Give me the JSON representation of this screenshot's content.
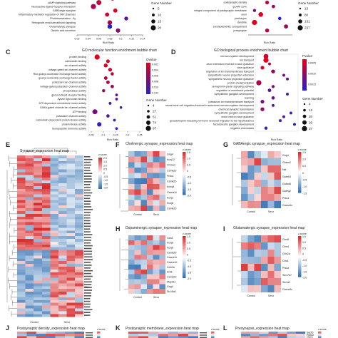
{
  "panel_a": {
    "terms": [
      "Insulin secretion",
      "cAMP signaling pathway",
      "Neuroactive ligand-receptor interaction",
      "GABAergic synapse",
      "Inflammatory mediator regulation of TRP channels",
      "Phototransduction - fly",
      "Retrograde endocannabinoid signaling",
      "Glutamatergic synapse",
      "Gastric acid secretion"
    ],
    "rich_ratio": [
      0.085,
      0.06,
      0.05,
      0.09,
      0.075,
      0.11,
      0.08,
      0.08,
      0.095
    ],
    "gene_number": [
      10,
      18,
      20,
      10,
      10,
      8,
      14,
      14,
      12
    ],
    "pvalue": [
      0.001,
      0.0015,
      0.002,
      0.0005,
      0.001,
      0.004,
      0.002,
      0.005,
      0.003
    ],
    "x_ticks": [
      "0.02",
      "0.04",
      "0.06",
      "0.08",
      "0.1",
      "0.12",
      "0.14"
    ],
    "xlabel": "Rich Ratio",
    "size_legend_title": "Gene Number",
    "size_legend": [
      "5",
      "10",
      "15",
      "20"
    ]
  },
  "panel_b": {
    "terms": [
      "postsynaptic density",
      "growth cone",
      "integral component of postsynaptic membrane",
      "axon",
      "perikaryon",
      "dendrite",
      "somatodendritic compartment",
      "presynapse"
    ],
    "rich_ratio": [
      0.12,
      0.13,
      0.1,
      0.11,
      0.14,
      0.1,
      0.15,
      0.12
    ],
    "gene_number": [
      40,
      30,
      20,
      90,
      25,
      120,
      60,
      50
    ],
    "pvalue": [
      0.0002,
      0.0003,
      0.0004,
      0.0001,
      0.0006,
      0.0001,
      0.0003,
      0.0002
    ],
    "xlabel": "Rich Ratio",
    "size_legend_title": "Gene Number",
    "size_legend": [
      "13",
      "80",
      "131",
      "237"
    ]
  },
  "panel_c": {
    "label": "C",
    "title": "GO molecular function enrichment bubble chart",
    "terms": [
      "protein binding",
      "calmodulin binding",
      "ion channel activity",
      "voltage-gated ion channel activity",
      "Rho guanyl-nucleotide exchange factor activity",
      "guanyl-nucleotide exchange factor activity",
      "potassium ion channel activity",
      "voltage-gated potassium channel activity",
      "phosphatase activity",
      "glucocorticoid receptor binding",
      "dynein light chain binding",
      "ATP-dependent microtubule motor activity",
      "GABA-gated chloride ion channel activity",
      "ATP binding",
      "potassium channel activity",
      "calmodulin-dependent protein kinase activity",
      "protein kinase activity",
      "neuropeptide hormone activity"
    ],
    "rich_ratio": [
      0.06,
      0.11,
      0.1,
      0.12,
      0.13,
      0.1,
      0.11,
      0.13,
      0.09,
      0.15,
      0.15,
      0.12,
      0.17,
      0.05,
      0.11,
      0.14,
      0.07,
      0.15
    ],
    "gene_number": [
      97,
      30,
      40,
      34,
      20,
      28,
      26,
      24,
      18,
      8,
      8,
      10,
      6,
      90,
      22,
      9,
      60,
      8
    ],
    "pvalue": [
      0.0005,
      0.001,
      0.0008,
      0.002,
      0.003,
      0.004,
      0.003,
      0.005,
      0.006,
      0.008,
      0.009,
      0.01,
      0.011,
      0.007,
      0.009,
      0.01,
      0.011,
      0.012
    ],
    "x_ticks": [
      "0.05",
      "0.1",
      "0.15",
      "0.2",
      "0.25"
    ],
    "xlabel": "Rich Ratio",
    "color_legend_title": "Qvalue",
    "color_legend": [
      "0.002",
      "0.004",
      "0.006",
      "0.008",
      "0.010",
      "0.012"
    ],
    "size_legend_title": "Gene Number",
    "size_legend": [
      "4",
      "27",
      "51",
      "74",
      "97"
    ]
  },
  "panel_d": {
    "label": "D",
    "title": "GO biological process enrichment bubble chart",
    "terms": [
      "nervous system development",
      "ion transport",
      "axon extension involved in axon guidance",
      "axon guidance",
      "regulation of ion transmembrane transport",
      "sympathetic neuron projection extension",
      "sympathetic neuron projection guidance",
      "protein phosphorylation",
      "semaphorin-plexin signaling pathway",
      "regulation of membrane potential",
      "sympathetic ganglion development",
      "learning",
      "potassium ion transmembrane transport",
      "neural crest cell migration involved in autonomic nervous system development",
      "chemical synaptic transmission",
      "sympathetic ganglion development",
      "motor neuron axon guidance",
      "gonadotrophin-releasing hormone neuronal migration to the hypothalamus",
      "facioacoustic ganglion development",
      "negative chemotaxis"
    ],
    "rich_ratio": [
      0.2,
      0.2,
      0.25,
      0.15,
      0.3,
      0.45,
      0.5,
      0.1,
      0.3,
      0.25,
      0.5,
      0.3,
      0.15,
      0.3,
      0.15,
      0.55,
      0.45,
      0.4,
      0.6,
      0.2
    ],
    "gene_number": [
      30,
      37,
      4,
      12,
      15,
      4,
      4,
      37,
      6,
      10,
      4,
      8,
      12,
      4,
      14,
      4,
      4,
      4,
      4,
      6
    ],
    "pvalue": [
      0.0002,
      0.0001,
      0.0003,
      0.0001,
      0.0005,
      0.0006,
      0.0007,
      0.0004,
      0.0006,
      0.0008,
      0.0009,
      0.0007,
      0.0006,
      0.0008,
      0.0005,
      0.0009,
      0.0008,
      0.0009,
      0.001,
      0.001
    ],
    "xlabel": "Rich Ratio",
    "color_legend_title": "Pvalue",
    "color_legend": [
      "0.0005",
      "0.0010",
      "0.0015"
    ],
    "size_legend_title": "Gene Number",
    "size_legend": [
      "4",
      "12",
      "20",
      "29",
      "37"
    ]
  },
  "panel_e": {
    "label": "E",
    "title": "Synapse_expression heat map",
    "groups": [
      "Control",
      "Sevo"
    ],
    "legend_title": "z-score",
    "legend_ticks": [
      "2.0",
      "1.5",
      "1.0",
      "0.5",
      "0",
      "-0.5",
      "-1.0",
      "-1.5",
      "-2.0"
    ],
    "row_label": "T63"
  },
  "panel_f": {
    "label": "F",
    "title": "Cholinergic synapse_expression heat map",
    "genes": [
      "Gng4",
      "Kcnj12",
      "Chrna4",
      "Camk2b",
      "Prkca",
      "Camk2b",
      "Kcnq5",
      "Cacna1c",
      "Kcnj2",
      "Kcnj8",
      "Camk2b"
    ],
    "groups": [
      "Control",
      "Sevo"
    ],
    "legend_title": "z-score",
    "legend_ticks": [
      "1.5",
      "1.0",
      "0.5",
      "0",
      "-0.5",
      "-1.0",
      "-1.5",
      "-2.0"
    ]
  },
  "panel_g": {
    "label": "G",
    "title": "GABAergic synapse_expression heat map",
    "genes": [
      "Gng4",
      "Gabra1",
      "Nsf",
      "Gabrb3",
      "Gabra5",
      "Gabrg2",
      "Prkca",
      "Cacna1c"
    ],
    "groups": [
      "Control",
      "Sevo"
    ],
    "legend_title": "z-score",
    "legend_ticks": [
      "1.5",
      "1.0",
      "0.5",
      "0",
      "-0.5",
      "-1.0",
      "-1.5"
    ]
  },
  "panel_h": {
    "label": "H",
    "title": "Dopaminergic synapse_expression heat map",
    "genes": [
      "Gria1",
      "Kcnj6",
      "Kcnj6",
      "Camk2b",
      "Cacna1c",
      "Cacna1d",
      "Grin2a",
      "Drd1",
      "Camk2d",
      "Mapk11",
      "Gng4",
      "Slc18a1"
    ],
    "groups": [
      "Control",
      "Sevo"
    ],
    "legend_title": "z-score",
    "legend_ticks": [
      "1.5",
      "1.0",
      "0.5",
      "0",
      "-0.5",
      "-1.0",
      "-1.5",
      "-2.0"
    ]
  },
  "panel_i": {
    "label": "I",
    "title": "Glutamatergic synapse_expression heat map",
    "genes": [
      "Grm8",
      "Grm4",
      "Grin2a",
      "Gria1",
      "Prkca",
      "Slc17a7",
      "Slc1a1",
      "Cacna1c"
    ],
    "groups": [
      "Control",
      "Sevo"
    ],
    "legend_title": "z-score",
    "legend_ticks": [
      "1.5",
      "1.0",
      "0.5",
      "0",
      "-0.5",
      "-1.0",
      "-1.5",
      "-2.0"
    ]
  },
  "panel_j": {
    "label": "J",
    "title": "Postsynaptic density_expression heat map",
    "legend_title": "z-score"
  },
  "panel_k": {
    "label": "K",
    "title": "Postsynaptic membrane_expression heat map",
    "legend_title": "z-score"
  },
  "panel_l": {
    "label": "L",
    "title": "Presynapse_expression heat map",
    "genes": [
      "Sept5",
      "Ppfia2",
      "Cd74"
    ],
    "legend_title": "z-score"
  },
  "colors": {
    "heat_high": "#d62728",
    "heat_mid": "#ffffff",
    "heat_low": "#2b6cb0",
    "bubble_high": "#e3001b",
    "bubble_low": "#2222cc"
  }
}
